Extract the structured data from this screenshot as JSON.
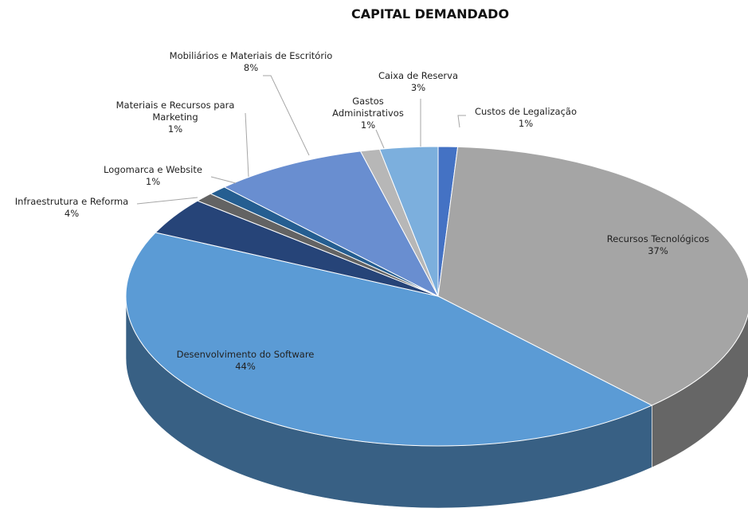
{
  "chart_data": {
    "type": "pie",
    "title": "CAPITAL DEMANDADO",
    "categories": [
      "Custos de Legalização",
      "Recursos Tecnológicos",
      "Desenvolvimento do Software",
      "Infraestrutura e Reforma",
      "Logomarca e Website",
      "Materiais e Recursos para Marketing",
      "Mobiliários e Materiais de Escritório",
      "Gastos Administrativos",
      "Caixa de Reserva"
    ],
    "values": [
      1,
      37,
      44,
      4,
      1,
      1,
      8,
      1,
      3
    ],
    "value_labels": [
      "1%",
      "37%",
      "44%",
      "4%",
      "1%",
      "1%",
      "8%",
      "1%",
      "3%"
    ],
    "colors": [
      "#4472c4",
      "#a5a5a5",
      "#5b9bd5",
      "#264478",
      "#636363",
      "#255e91",
      "#698ed0",
      "#b7b7b7",
      "#7cafdd"
    ]
  }
}
